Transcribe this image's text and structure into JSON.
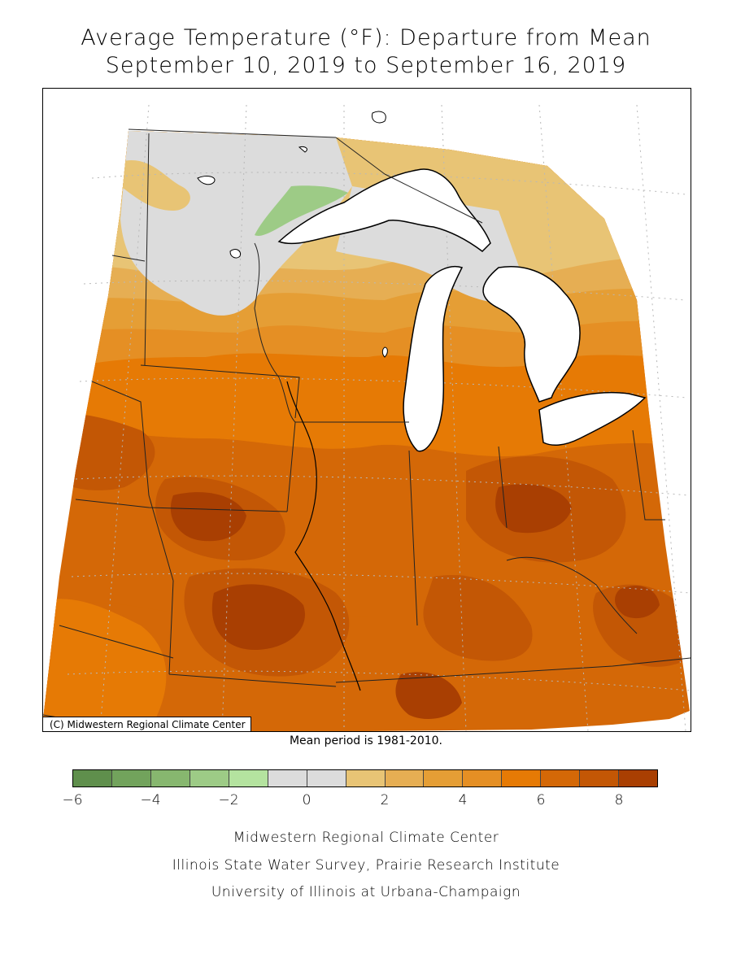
{
  "title_line1": "Average Temperature (°F): Departure from Mean",
  "title_line2": "September 10, 2019 to September 16, 2019",
  "copyright": "(C) Midwestern Regional Climate Center",
  "mean_note": "Mean period is 1981-2010.",
  "legend": {
    "bins": [
      {
        "color": "#5f8f4c"
      },
      {
        "color": "#72a35c"
      },
      {
        "color": "#87b76f"
      },
      {
        "color": "#9dcb86"
      },
      {
        "color": "#b4e39f"
      },
      {
        "color": "#dcdcdc"
      },
      {
        "color": "#dcdcdc"
      },
      {
        "color": "#e8c475"
      },
      {
        "color": "#e6ae53"
      },
      {
        "color": "#e59e35"
      },
      {
        "color": "#e58f24"
      },
      {
        "color": "#e67a05"
      },
      {
        "color": "#d46807"
      },
      {
        "color": "#c35705"
      },
      {
        "color": "#a93f02"
      }
    ],
    "tick_values": [
      "−6",
      "−4",
      "−2",
      "0",
      "2",
      "4",
      "6",
      "8"
    ]
  },
  "credits": [
    "Midwestern Regional Climate Center",
    "Illinois State Water Survey, Prairie Research Institute",
    "University of Illinois at Urbana-Champaign"
  ]
}
